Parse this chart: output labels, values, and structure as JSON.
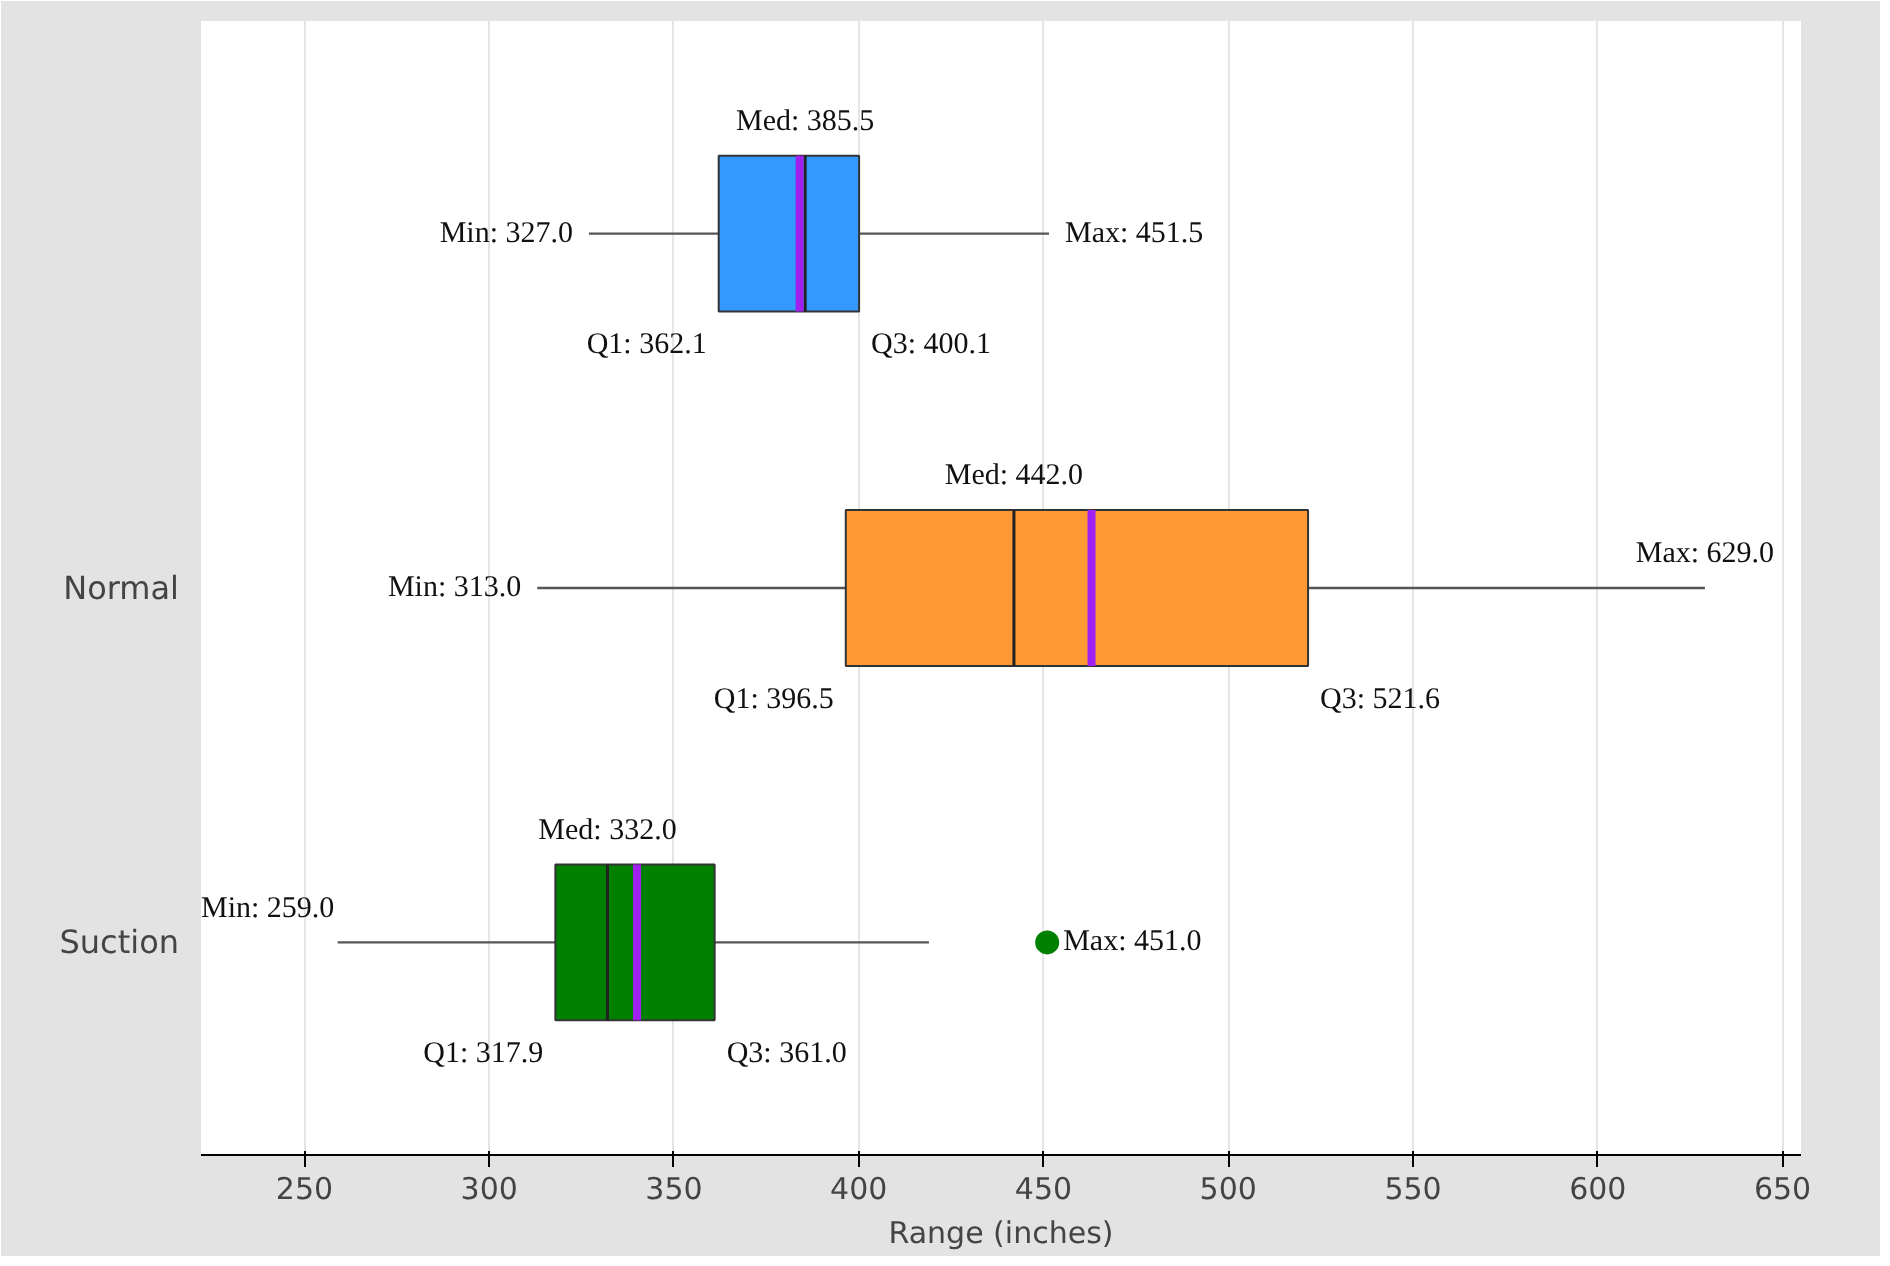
{
  "chart_data": {
    "type": "box",
    "orientation": "horizontal",
    "xlabel": "Range (inches)",
    "categories": [
      null,
      "Normal",
      "Suction"
    ],
    "series": [
      {
        "colors": [
          "#3399ff",
          "#ff9933",
          "#008000"
        ],
        "boxes": [
          {
            "low": 327.0,
            "q1": 362.1,
            "median": 385.5,
            "q3": 400.1,
            "high": 451.5,
            "mean": 384
          },
          {
            "low": 313.0,
            "q1": 396.5,
            "median": 442.0,
            "q3": 521.6,
            "high": 629.0,
            "mean": 463
          },
          {
            "low": 259.0,
            "q1": 317.9,
            "median": 332.0,
            "q3": 361.0,
            "high": 419,
            "mean": 340,
            "outliers": [
              451.0
            ]
          }
        ]
      }
    ],
    "xlim": [
      222,
      655
    ],
    "xticks": [
      250,
      300,
      350,
      400,
      450,
      500,
      550,
      600,
      650
    ],
    "grid": "x",
    "annotations": [
      "Med: 385.5",
      "Min: 327.0",
      "Max: 451.5",
      "Q1: 362.1",
      "Q3: 400.1",
      "Med: 442.0",
      "Min: 313.0",
      "Max: 629.0",
      "Q1: 396.5",
      "Q3:  521.6",
      "Med: 332.0",
      "Min: 259.0",
      "Max: 451.0",
      "Q1: 317.9",
      "Q3: 361.0"
    ]
  }
}
